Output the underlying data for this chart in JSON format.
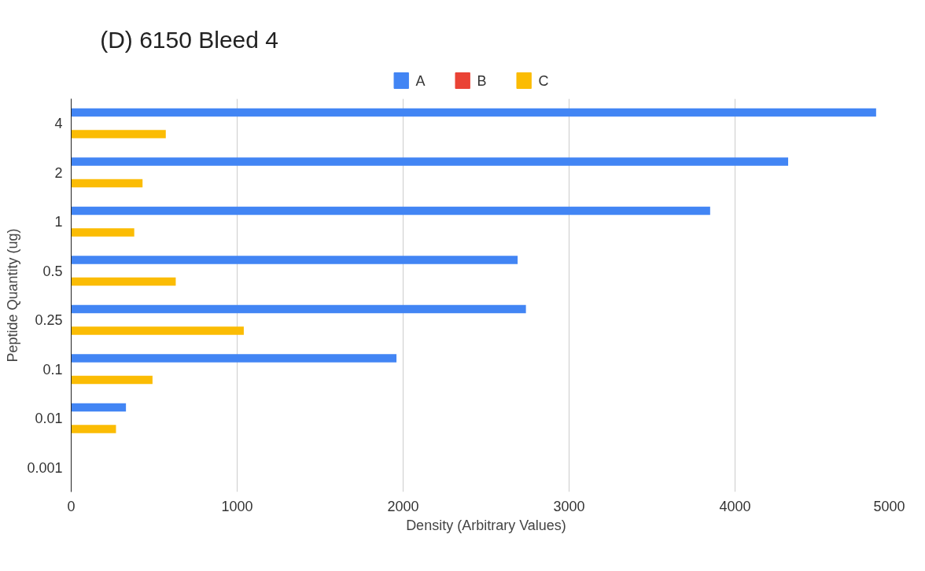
{
  "chart_data": {
    "type": "bar",
    "orientation": "horizontal",
    "title": "(D) 6150 Bleed 4",
    "xlabel": "Density (Arbitrary Values)",
    "ylabel": "Peptide Quantity (ug)",
    "categories": [
      "4",
      "2",
      "1",
      "0.5",
      "0.25",
      "0.1",
      "0.01",
      "0.001"
    ],
    "series": [
      {
        "name": "A",
        "color": "#4285f4",
        "values": [
          4850,
          4320,
          3850,
          2690,
          2740,
          1960,
          330,
          null
        ]
      },
      {
        "name": "B",
        "color": "#ea4335",
        "values": [
          null,
          null,
          null,
          null,
          null,
          null,
          null,
          null
        ]
      },
      {
        "name": "C",
        "color": "#fbbc04",
        "values": [
          570,
          430,
          380,
          630,
          1040,
          490,
          270,
          null
        ]
      }
    ],
    "xlim": [
      0,
      5000
    ],
    "xticks": [
      0,
      1000,
      2000,
      3000,
      4000,
      5000
    ],
    "grid": "x",
    "legend": "top"
  }
}
